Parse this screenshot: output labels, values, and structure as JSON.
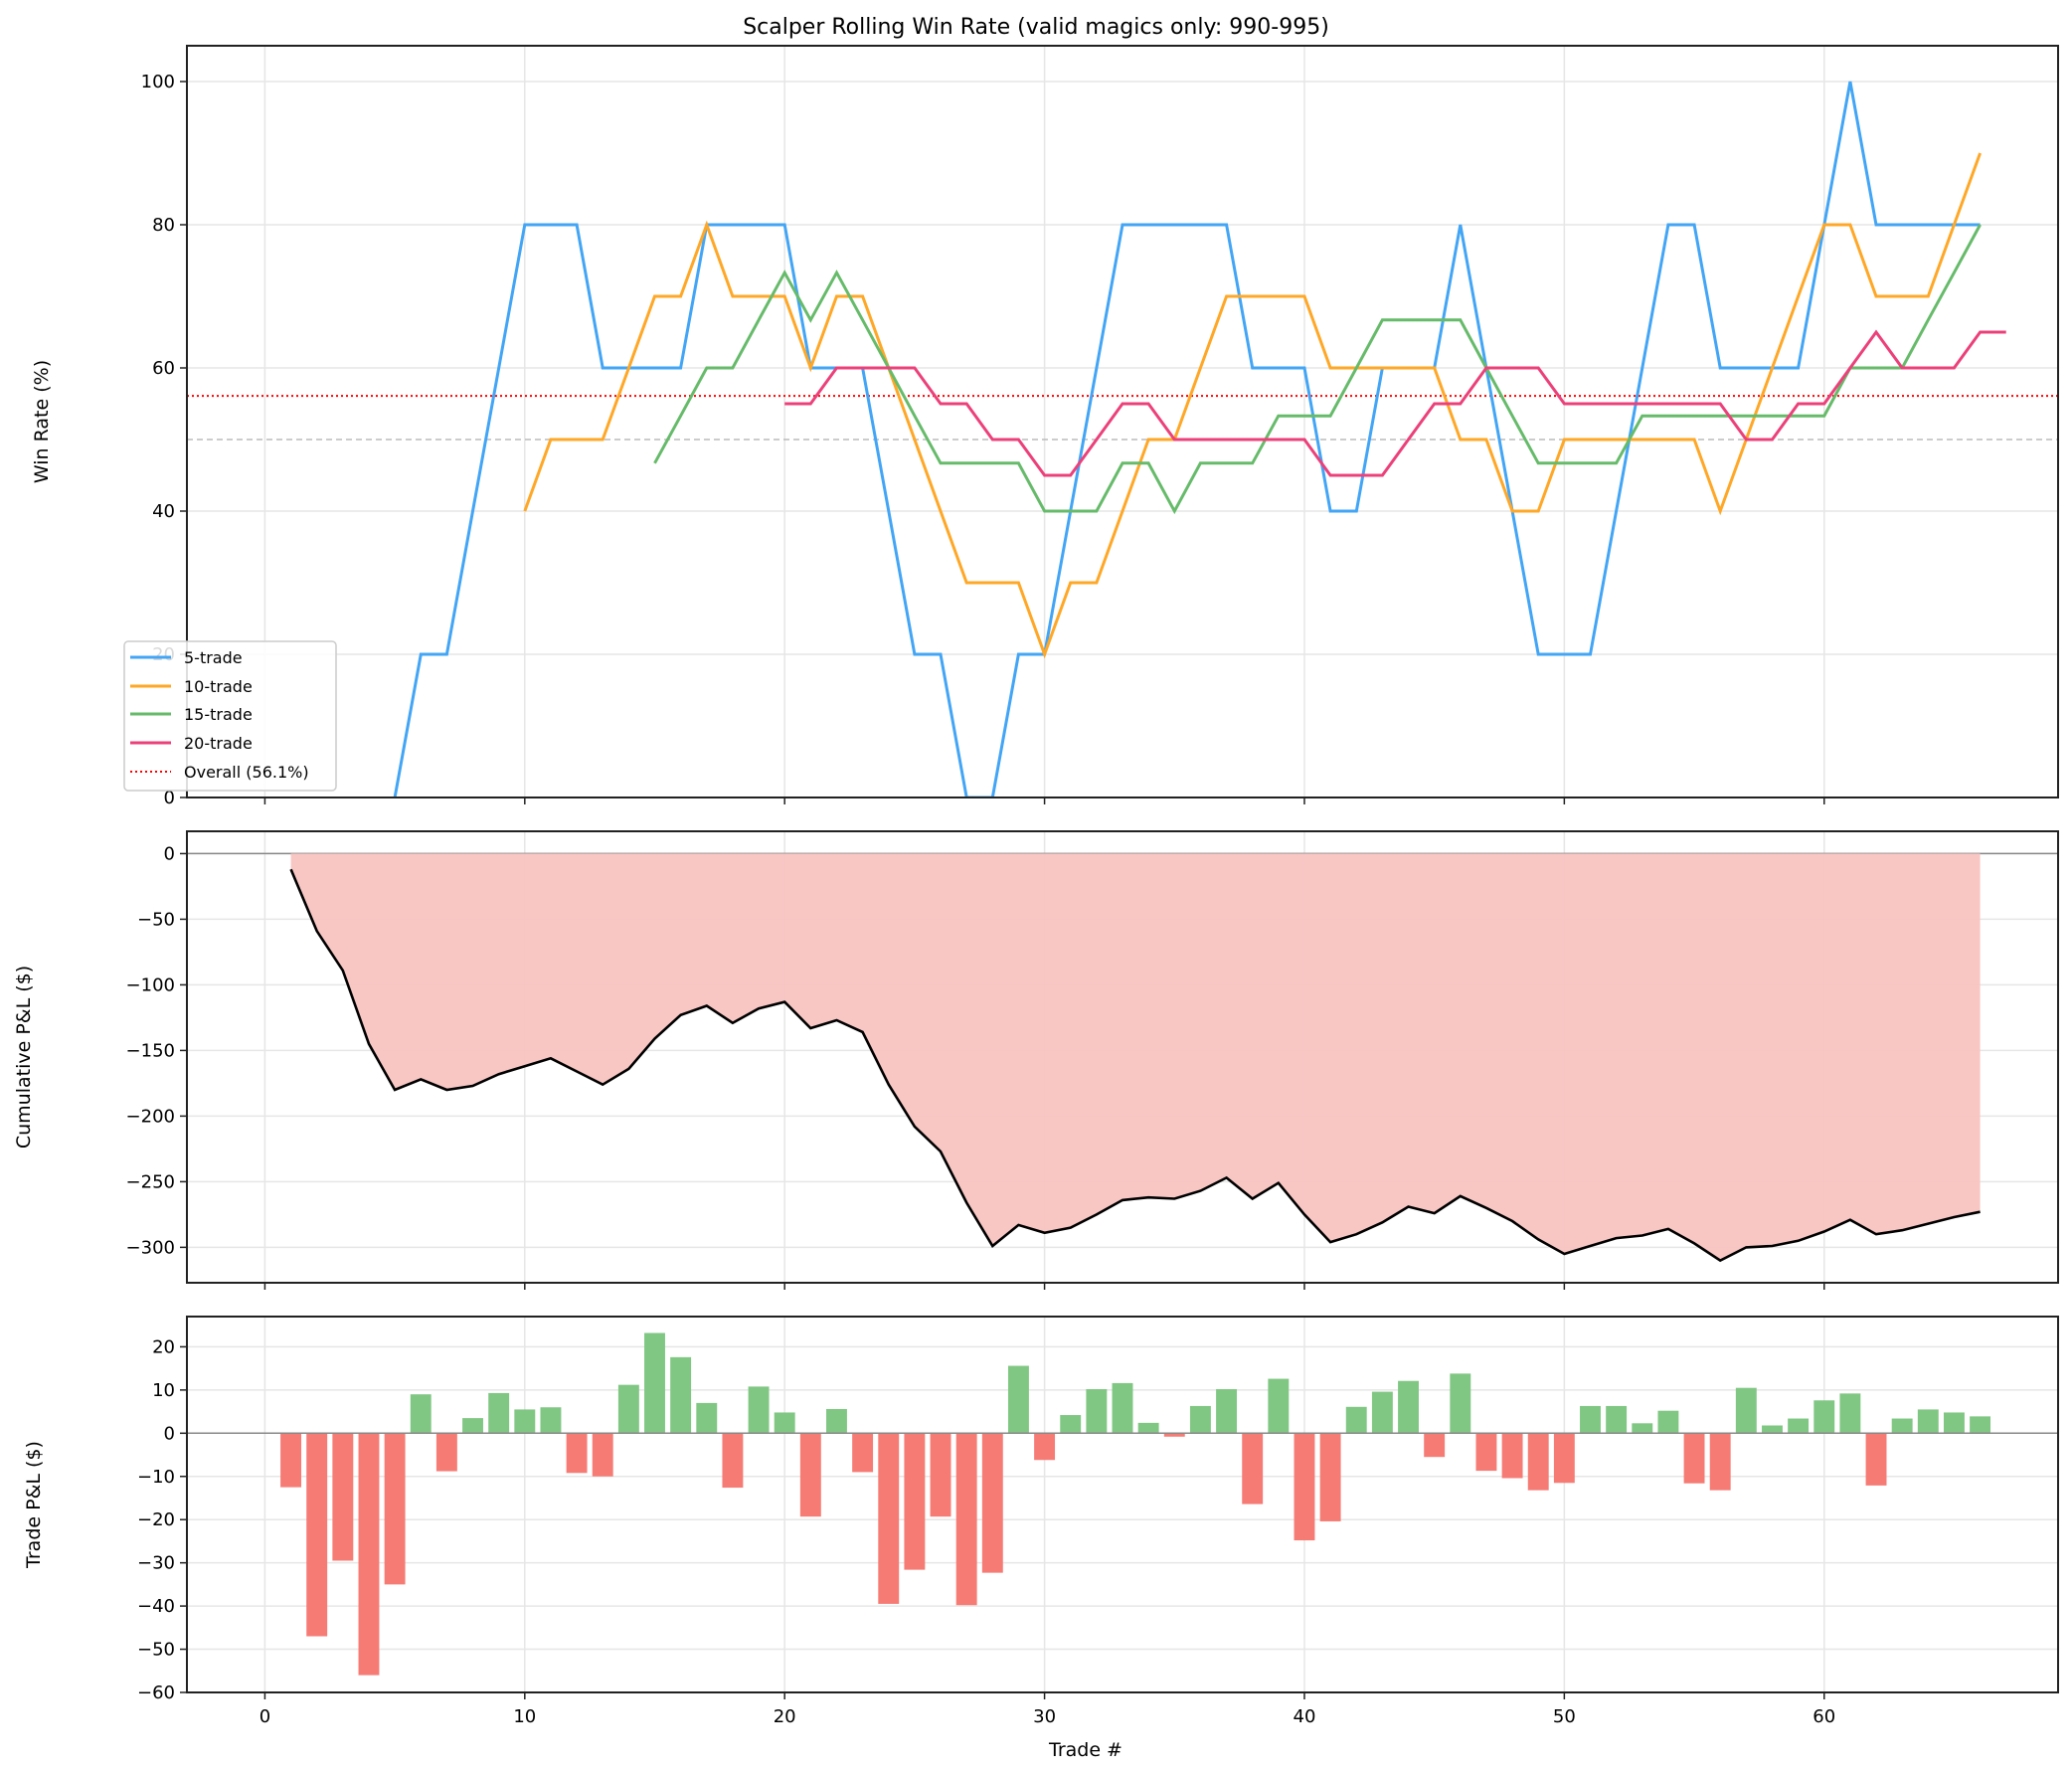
{
  "chart_data": [
    {
      "type": "line",
      "title": "Scalper Rolling Win Rate (valid magics only: 990-995)",
      "xlabel": "",
      "ylabel": "Win Rate (%)",
      "xlim": [
        -3,
        69
      ],
      "ylim": [
        0,
        105
      ],
      "yticks": [
        0,
        20,
        40,
        60,
        80,
        100
      ],
      "xticks": [
        0,
        10,
        20,
        30,
        40,
        50,
        60
      ],
      "grid": true,
      "legend_position": "lower left",
      "reference_lines": [
        {
          "name": "Overall (56.1%)",
          "y": 56.1,
          "style": "dotted",
          "color": "#ff0000"
        },
        {
          "name": "50% baseline",
          "y": 50,
          "style": "dashed",
          "color": "#bbbbbb"
        }
      ],
      "series": [
        {
          "name": "5-trade",
          "color": "#42a5f5",
          "x_start": 5,
          "values": [
            0,
            20,
            20,
            40,
            60,
            80,
            80,
            80,
            60,
            60,
            60,
            60,
            80,
            80,
            80,
            80,
            60,
            60,
            60,
            40,
            20,
            20,
            0,
            0,
            20,
            20,
            40,
            60,
            80,
            80,
            80,
            80,
            80,
            60,
            60,
            60,
            40,
            40,
            60,
            60,
            60,
            80,
            60,
            40,
            20,
            20,
            20,
            40,
            60,
            80,
            80,
            60,
            60,
            60,
            60,
            80,
            100,
            80,
            80,
            80,
            80,
            80
          ]
        },
        {
          "name": "10-trade",
          "color": "#ffa726",
          "x_start": 10,
          "values": [
            40,
            50,
            50,
            50,
            60,
            70,
            70,
            80,
            70,
            70,
            70,
            60,
            70,
            70,
            60,
            50,
            40,
            30,
            30,
            30,
            20,
            30,
            30,
            40,
            50,
            50,
            60,
            70,
            70,
            70,
            70,
            60,
            60,
            60,
            60,
            60,
            50,
            50,
            40,
            40,
            50,
            50,
            50,
            50,
            50,
            50,
            40,
            50,
            60,
            70,
            80,
            80,
            70,
            70,
            70,
            80,
            90
          ]
        },
        {
          "name": "15-trade",
          "color": "#66bb6a",
          "x_start": 15,
          "values": [
            46.7,
            53.3,
            60,
            60,
            66.7,
            73.3,
            66.7,
            73.3,
            66.7,
            60,
            53.3,
            46.7,
            46.7,
            46.7,
            46.7,
            40,
            40,
            40,
            46.7,
            46.7,
            40,
            46.7,
            46.7,
            46.7,
            53.3,
            53.3,
            53.3,
            60,
            66.7,
            66.7,
            66.7,
            66.7,
            60,
            53.3,
            46.7,
            46.7,
            46.7,
            46.7,
            53.3,
            53.3,
            53.3,
            53.3,
            53.3,
            53.3,
            53.3,
            53.3,
            60,
            60,
            60,
            66.7,
            73.3,
            80
          ]
        },
        {
          "name": "20-trade",
          "color": "#ec407a",
          "x_start": 20,
          "values": [
            55,
            55,
            60,
            60,
            60,
            60,
            55,
            55,
            50,
            50,
            45,
            45,
            50,
            55,
            55,
            50,
            50,
            50,
            50,
            50,
            50,
            45,
            45,
            45,
            50,
            55,
            55,
            60,
            60,
            60,
            55,
            55,
            55,
            55,
            55,
            55,
            55,
            50,
            50,
            55,
            55,
            60,
            65,
            60,
            60,
            60,
            65,
            65
          ]
        }
      ]
    },
    {
      "type": "area",
      "title": "",
      "xlabel": "",
      "ylabel": "Cumulative P&L ($)",
      "xlim": [
        -3,
        69
      ],
      "ylim": [
        -327,
        17
      ],
      "yticks": [
        0,
        -50,
        -100,
        -150,
        -200,
        -250,
        -300
      ],
      "grid": true,
      "fill_color": "#f8c4c1",
      "line_color": "#000000",
      "x": [
        1,
        2,
        3,
        4,
        5,
        6,
        7,
        8,
        9,
        10,
        11,
        12,
        13,
        14,
        15,
        16,
        17,
        18,
        19,
        20,
        21,
        22,
        23,
        24,
        25,
        26,
        27,
        28,
        29,
        30,
        31,
        32,
        33,
        34,
        35,
        36,
        37,
        38,
        39,
        40,
        41,
        42,
        43,
        44,
        45,
        46,
        47,
        48,
        49,
        50,
        51,
        52,
        53,
        54,
        55,
        56,
        57,
        58,
        59,
        60,
        61,
        62,
        63,
        64,
        65,
        66
      ],
      "values": [
        -12,
        -59,
        -89,
        -145,
        -180,
        -172,
        -180,
        -177,
        -168,
        -162,
        -156,
        -166,
        -176,
        -164,
        -141,
        -123,
        -116,
        -129,
        -118,
        -113,
        -133,
        -127,
        -136,
        -176,
        -208,
        -227,
        -266,
        -299,
        -283,
        -289,
        -285,
        -275,
        -264,
        -262,
        -263,
        -257,
        -247,
        -263,
        -251,
        -275,
        -296,
        -290,
        -281,
        -269,
        -274,
        -261,
        -270,
        -280,
        -294,
        -305,
        -299,
        -293,
        -291,
        -286,
        -297,
        -310,
        -300,
        -299,
        -295,
        -288,
        -279,
        -290,
        -287,
        -282,
        -277,
        -273
      ]
    },
    {
      "type": "bar",
      "title": "",
      "xlabel": "Trade #",
      "ylabel": "Trade P&L ($)",
      "xlim": [
        -3,
        69
      ],
      "ylim": [
        -60,
        27
      ],
      "yticks": [
        20,
        10,
        0,
        -10,
        -20,
        -30,
        -40,
        -50,
        -60
      ],
      "xticks": [
        0,
        10,
        20,
        30,
        40,
        50,
        60
      ],
      "grid": true,
      "positive_color": "#81c784",
      "negative_color": "#f67b74",
      "categories": [
        1,
        2,
        3,
        4,
        5,
        6,
        7,
        8,
        9,
        10,
        11,
        12,
        13,
        14,
        15,
        16,
        17,
        18,
        19,
        20,
        21,
        22,
        23,
        24,
        25,
        26,
        27,
        28,
        29,
        30,
        31,
        32,
        33,
        34,
        35,
        36,
        37,
        38,
        39,
        40,
        41,
        42,
        43,
        44,
        45,
        46,
        47,
        48,
        49,
        50,
        51,
        52,
        53,
        54,
        55,
        56,
        57,
        58,
        59,
        60,
        61,
        62,
        63,
        64,
        65,
        66
      ],
      "values": [
        -12.5,
        -47,
        -29.5,
        -56,
        -35,
        9,
        -8.8,
        3.5,
        9.3,
        5.5,
        6,
        -9.2,
        -10,
        11.2,
        23.2,
        17.6,
        7,
        -12.6,
        10.8,
        4.8,
        -19.3,
        5.6,
        -9,
        -39.5,
        -31.6,
        -19.3,
        -39.8,
        -32.3,
        15.6,
        -6.2,
        4.2,
        10.2,
        11.6,
        2.4,
        -0.8,
        6.3,
        10.2,
        -16.4,
        12.6,
        -24.8,
        -20.4,
        6.1,
        9.6,
        12.1,
        -5.5,
        13.8,
        -8.7,
        -10.4,
        -13.2,
        -11.5,
        6.3,
        6.3,
        2.3,
        5.2,
        -11.6,
        -13.2,
        10.5,
        1.8,
        3.4,
        7.6,
        9.2,
        -12.1,
        3.4,
        5.5,
        4.8,
        3.9
      ]
    }
  ],
  "labels": {
    "title": "Scalper Rolling Win Rate (valid magics only: 990-995)",
    "top_ylabel": "Win Rate (%)",
    "mid_ylabel": "Cumulative P&L ($)",
    "bot_ylabel": "Trade P&L ($)",
    "xlabel": "Trade #",
    "legend": [
      "5-trade",
      "10-trade",
      "15-trade",
      "20-trade",
      "Overall (56.1%)"
    ]
  }
}
